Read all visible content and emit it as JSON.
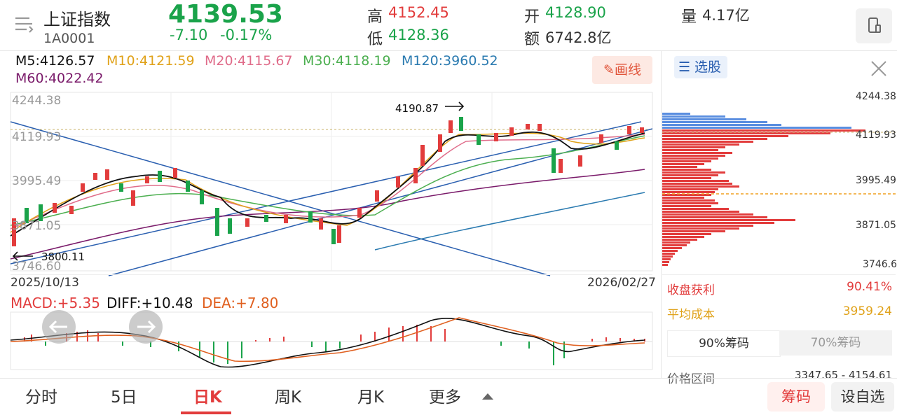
{
  "header": {
    "title": "上证指数",
    "code": "1A0001",
    "price": "4139.53",
    "change": "-7.10",
    "change_pct": "-0.17%",
    "high_label": "高",
    "high": "4152.45",
    "low_label": "低",
    "low": "4128.36",
    "open_label": "开",
    "open": "4128.90",
    "amount_label": "额",
    "amount": "6742.8亿",
    "volume_label": "量",
    "volume": "4.17亿"
  },
  "ma": {
    "m5": "M5:4126.57",
    "m10": "M10:4121.59",
    "m20": "M20:4115.67",
    "m30": "M30:4118.19",
    "m120": "M120:3960.52",
    "m60": "M60:4022.42",
    "draw_btn": "画线"
  },
  "kchart": {
    "y_labels": [
      "4244.38",
      "4119.93",
      "3995.49",
      "3871.05",
      "3746.60"
    ],
    "max_label": "4190.87",
    "min_label": "3800.11",
    "start_date": "2025/10/13",
    "end_date": "2026/02/27"
  },
  "macd": {
    "macd": "MACD:+5.35",
    "diff": "DIFF:+10.48",
    "dea": "DEA:+7.80"
  },
  "right_panel": {
    "select_btn": "选股",
    "y_labels": [
      "4244.38",
      "4119.93",
      "3995.49",
      "3871.05",
      "3746.6"
    ],
    "profit_label": "收盘获利",
    "profit_value": "90.41%",
    "cost_label": "平均成本",
    "cost_value": "3959.24",
    "tab90": "90%筹码",
    "tab70": "70%筹码",
    "range_label": "价格区间",
    "range_value": "3347.65 - 4154.61"
  },
  "tabs": [
    "分时",
    "5日",
    "日K",
    "周K",
    "月K",
    "更多"
  ],
  "bottom_buttons": {
    "chip": "筹码",
    "add_fav": "设自选"
  }
}
